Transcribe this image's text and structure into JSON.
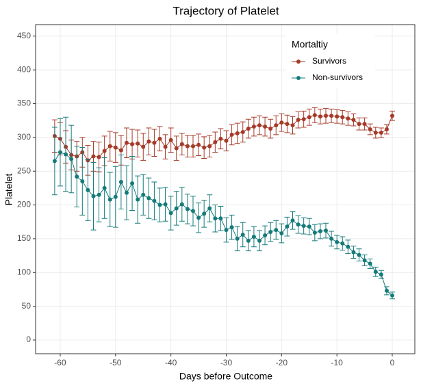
{
  "chart_data": {
    "type": "line",
    "title": "Trajectory of Platelet",
    "x_label": "Days before Outcome",
    "y_label": "Platelet",
    "legend_title": "Mortaltiy",
    "legend_position": "top-right",
    "grid": true,
    "x": [
      -61,
      -60,
      -59,
      -58,
      -57,
      -56,
      -55,
      -54,
      -53,
      -52,
      -51,
      -50,
      -49,
      -48,
      -47,
      -46,
      -45,
      -44,
      -43,
      -42,
      -41,
      -40,
      -39,
      -38,
      -37,
      -36,
      -35,
      -34,
      -33,
      -32,
      -31,
      -30,
      -29,
      -28,
      -27,
      -26,
      -25,
      -24,
      -23,
      -22,
      -21,
      -20,
      -19,
      -18,
      -17,
      -16,
      -15,
      -14,
      -13,
      -12,
      -11,
      -10,
      -9,
      -8,
      -7,
      -6,
      -5,
      -4,
      -3,
      -2,
      -1,
      0
    ],
    "xlim": [
      -64.45,
      4.08
    ],
    "xticks": [
      -60,
      -50,
      -40,
      -30,
      -20,
      -10,
      0
    ],
    "ylim": [
      -20.3,
      467
    ],
    "yticks": [
      0,
      50,
      100,
      150,
      200,
      250,
      300,
      350,
      400,
      450
    ],
    "series": [
      {
        "name": "Survivors",
        "color": "#a63a28",
        "values": [
          302,
          298,
          286,
          274,
          272,
          278,
          266,
          272,
          271,
          280,
          287,
          285,
          281,
          292,
          290,
          291,
          286,
          294,
          292,
          298,
          286,
          296,
          284,
          290,
          287,
          287,
          289,
          285,
          287,
          293,
          298,
          295,
          304,
          306,
          308,
          313,
          316,
          318,
          316,
          313,
          318,
          322,
          320,
          318,
          326,
          327,
          330,
          333,
          331,
          332,
          332,
          331,
          330,
          328,
          326,
          320,
          320,
          312,
          307,
          307,
          312,
          332
        ],
        "errors": [
          24,
          24,
          24,
          22,
          22,
          22,
          22,
          22,
          22,
          22,
          22,
          22,
          22,
          22,
          22,
          20,
          20,
          20,
          20,
          18,
          18,
          18,
          18,
          16,
          16,
          16,
          16,
          16,
          16,
          15,
          15,
          15,
          15,
          15,
          15,
          14,
          14,
          14,
          14,
          14,
          14,
          13,
          13,
          13,
          12,
          12,
          12,
          11,
          11,
          11,
          10,
          10,
          10,
          10,
          9,
          9,
          9,
          8,
          8,
          7,
          7,
          7
        ]
      },
      {
        "name": "Non-survivors",
        "color": "#157a7a",
        "values": [
          265,
          278,
          275,
          268,
          242,
          235,
          222,
          213,
          215,
          225,
          208,
          212,
          234,
          218,
          232,
          208,
          215,
          210,
          206,
          200,
          201,
          188,
          195,
          201,
          194,
          191,
          181,
          187,
          195,
          180,
          180,
          163,
          167,
          150,
          156,
          147,
          153,
          147,
          155,
          160,
          163,
          158,
          168,
          177,
          171,
          169,
          168,
          159,
          161,
          162,
          150,
          145,
          143,
          138,
          130,
          126,
          118,
          113,
          101,
          97,
          73,
          66
        ],
        "errors": [
          50,
          50,
          55,
          50,
          45,
          50,
          45,
          50,
          40,
          45,
          40,
          45,
          40,
          40,
          40,
          35,
          30,
          30,
          28,
          25,
          25,
          25,
          25,
          25,
          22,
          22,
          22,
          20,
          20,
          20,
          18,
          18,
          18,
          18,
          18,
          15,
          15,
          15,
          14,
          14,
          14,
          14,
          14,
          13,
          13,
          12,
          12,
          12,
          11,
          11,
          11,
          10,
          10,
          10,
          9,
          9,
          8,
          7,
          7,
          6,
          6,
          5
        ]
      }
    ]
  }
}
